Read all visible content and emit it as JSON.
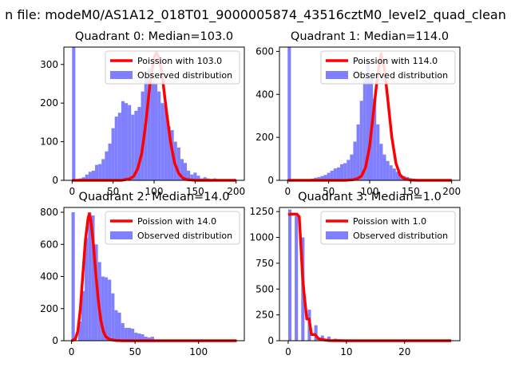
{
  "suptitle": "n file: modeM0/AS1A12_018T01_9000005874_43516cztM0_level2_quad_clean",
  "colors": {
    "poisson_line": "#ff0000",
    "observed_bars": "#8080ff",
    "axes": "#000000",
    "legend_border": "#cccccc"
  },
  "chart_data": [
    {
      "type": "bar",
      "title": "Quadrant 0: Median=103.0",
      "xlim": [
        -10,
        210
      ],
      "ylim": [
        0,
        345
      ],
      "xticks": [
        0,
        50,
        100,
        150,
        200
      ],
      "yticks": [
        0,
        100,
        200,
        300
      ],
      "legend_placement": "upper right",
      "series": [
        {
          "name": "Poission with 103.0",
          "kind": "line",
          "x": [
            0,
            60,
            70,
            75,
            80,
            85,
            90,
            95,
            100,
            103,
            106,
            110,
            115,
            120,
            125,
            130,
            135,
            140,
            150,
            160,
            200
          ],
          "y": [
            0,
            0,
            4,
            10,
            30,
            70,
            150,
            250,
            318,
            330,
            318,
            270,
            180,
            100,
            45,
            18,
            6,
            2,
            0,
            0,
            0
          ]
        },
        {
          "name": "Observed distribution",
          "kind": "histogram",
          "bin_start": 0,
          "bin_width": 4,
          "values": [
            345,
            0,
            5,
            8,
            15,
            22,
            25,
            40,
            42,
            55,
            75,
            95,
            135,
            165,
            175,
            205,
            200,
            195,
            170,
            180,
            190,
            230,
            265,
            290,
            255,
            250,
            230,
            200,
            195,
            140,
            130,
            100,
            85,
            55,
            45,
            25,
            15,
            20,
            12,
            5,
            8,
            5,
            3,
            5,
            2,
            2,
            2,
            2,
            2,
            2
          ]
        }
      ]
    },
    {
      "type": "bar",
      "title": "Quadrant 1: Median=114.0",
      "xlim": [
        -10,
        210
      ],
      "ylim": [
        0,
        620
      ],
      "xticks": [
        0,
        50,
        100,
        150,
        200
      ],
      "yticks": [
        0,
        200,
        400,
        600
      ],
      "legend_placement": "upper right",
      "series": [
        {
          "name": "Poission with 114.0",
          "kind": "line",
          "x": [
            0,
            70,
            80,
            85,
            90,
            95,
            100,
            105,
            110,
            114,
            118,
            122,
            127,
            132,
            137,
            142,
            150,
            160,
            200
          ],
          "y": [
            0,
            0,
            3,
            8,
            20,
            60,
            160,
            330,
            500,
            590,
            520,
            380,
            200,
            80,
            25,
            8,
            1,
            0,
            0
          ]
        },
        {
          "name": "Observed distribution",
          "kind": "histogram",
          "bin_start": 0,
          "bin_width": 4,
          "values": [
            620,
            0,
            2,
            2,
            3,
            3,
            5,
            8,
            12,
            15,
            20,
            25,
            35,
            45,
            55,
            60,
            75,
            80,
            95,
            120,
            180,
            260,
            370,
            480,
            560,
            480,
            380,
            260,
            170,
            120,
            90,
            70,
            55,
            40,
            25,
            20,
            15,
            10,
            8,
            5,
            5,
            4,
            3,
            2,
            2,
            2,
            2,
            2,
            2,
            0
          ]
        }
      ]
    },
    {
      "type": "bar",
      "title": "Quadrant 2: Median=14.0",
      "xlim": [
        -6,
        136
      ],
      "ylim": [
        0,
        830
      ],
      "xticks": [
        0,
        50,
        100
      ],
      "yticks": [
        0,
        200,
        400,
        600,
        800
      ],
      "legend_placement": "upper right",
      "series": [
        {
          "name": "Poission with 14.0",
          "kind": "line",
          "x": [
            0,
            3,
            5,
            7,
            9,
            11,
            13,
            14,
            15,
            17,
            19,
            21,
            23,
            25,
            27,
            30,
            35,
            40,
            130
          ],
          "y": [
            0,
            10,
            60,
            200,
            420,
            630,
            760,
            790,
            760,
            620,
            430,
            260,
            130,
            60,
            25,
            8,
            2,
            0,
            0
          ]
        },
        {
          "name": "Observed distribution",
          "kind": "histogram",
          "bin_start": 0,
          "bin_width": 2.6,
          "values": [
            800,
            0,
            120,
            310,
            640,
            800,
            780,
            600,
            490,
            400,
            395,
            380,
            295,
            190,
            175,
            110,
            80,
            80,
            75,
            50,
            45,
            40,
            25,
            20,
            25,
            5,
            5,
            2,
            2,
            2,
            2,
            2,
            2,
            2,
            2,
            2,
            2,
            2,
            2,
            2,
            2,
            2,
            2,
            2,
            2,
            2,
            2,
            2,
            2,
            2
          ]
        }
      ]
    },
    {
      "type": "bar",
      "title": "Quadrant 3: Median=1.0",
      "xlim": [
        -1.5,
        29.5
      ],
      "ylim": [
        0,
        1290
      ],
      "xticks": [
        0,
        10,
        20
      ],
      "yticks": [
        0,
        250,
        500,
        750,
        1000,
        1250
      ],
      "legend_placement": "upper right",
      "series": [
        {
          "name": "Poission with 1.0",
          "kind": "line",
          "x": [
            0,
            0.5,
            1,
            1.5,
            1.9,
            2.2,
            2.5,
            2.8,
            3.2,
            3.6,
            4,
            4.6,
            5.2,
            6,
            7,
            10,
            28
          ],
          "y": [
            1220,
            1225,
            1225,
            1225,
            1200,
            900,
            600,
            420,
            210,
            210,
            60,
            60,
            20,
            10,
            2,
            0,
            0
          ]
        },
        {
          "name": "Observed distribution",
          "kind": "histogram",
          "bin_start": 0,
          "bin_width": 0.56,
          "values": [
            1270,
            0,
            1210,
            0,
            1000,
            0,
            300,
            0,
            150,
            0,
            50,
            0,
            40,
            0,
            20,
            15,
            10,
            10,
            5,
            5,
            5,
            5,
            5,
            5,
            5,
            5,
            5,
            5,
            5,
            5,
            5,
            5,
            5,
            5,
            5,
            5,
            5,
            5,
            5,
            5,
            5,
            5,
            5,
            5,
            5,
            5,
            5,
            5,
            5,
            5
          ]
        }
      ]
    }
  ]
}
